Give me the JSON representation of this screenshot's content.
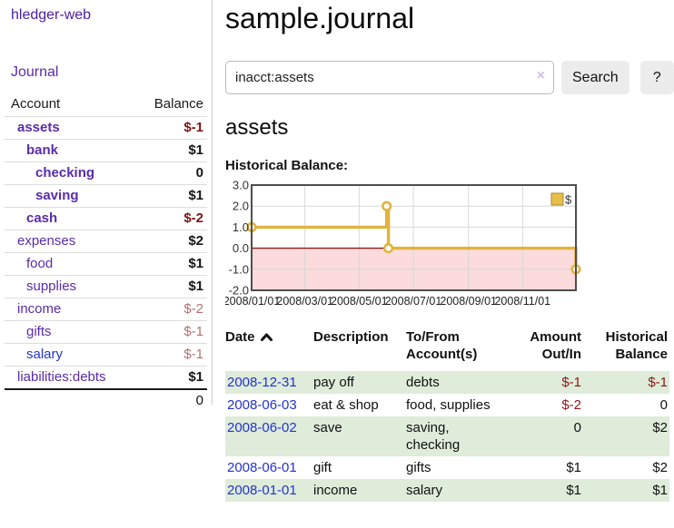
{
  "colors": {
    "link_purple": "#5a2ca8",
    "link_blue": "#2433cf",
    "negative_strong": "#7e1414",
    "negative_soft": "#b37070",
    "register_negative": "#8b1717",
    "row_shade_green": "#deecd9",
    "chart_line_gold": "#e2b33c",
    "chart_negative_fill": "#fbdbdb",
    "chart_zero_line": "#8f1a1a"
  },
  "app": {
    "title": "hledger-web",
    "nav_journal": "Journal"
  },
  "sidebar": {
    "headers": {
      "account": "Account",
      "balance": "Balance"
    },
    "accounts": [
      {
        "label": "assets",
        "balance": "$-1",
        "indent": 1,
        "bold": true,
        "link": "purple",
        "bal": "neg-strong"
      },
      {
        "label": "bank",
        "balance": "$1",
        "indent": 2,
        "bold": true,
        "link": "purple",
        "bal": "pos"
      },
      {
        "label": "checking",
        "balance": "0",
        "indent": 3,
        "bold": true,
        "link": "purple",
        "bal": "pos"
      },
      {
        "label": "saving",
        "balance": "$1",
        "indent": 3,
        "bold": true,
        "link": "purple",
        "bal": "pos"
      },
      {
        "label": "cash",
        "balance": "$-2",
        "indent": 2,
        "bold": true,
        "link": "purple",
        "bal": "neg-strong"
      },
      {
        "label": "expenses",
        "balance": "$2",
        "indent": 1,
        "bold": false,
        "link": "purple",
        "bal": "pos"
      },
      {
        "label": "food",
        "balance": "$1",
        "indent": 2,
        "bold": false,
        "link": "purple",
        "bal": "pos"
      },
      {
        "label": "supplies",
        "balance": "$1",
        "indent": 2,
        "bold": false,
        "link": "purple",
        "bal": "pos"
      },
      {
        "label": "income",
        "balance": "$-2",
        "indent": 1,
        "bold": false,
        "link": "purple",
        "bal": "neg-soft"
      },
      {
        "label": "gifts",
        "balance": "$-1",
        "indent": 2,
        "bold": false,
        "link": "purple",
        "bal": "neg-soft"
      },
      {
        "label": "salary",
        "balance": "$-1",
        "indent": 2,
        "bold": false,
        "link": "blue",
        "bal": "neg-soft"
      },
      {
        "label": "liabilities:debts",
        "balance": "$1",
        "indent": 1,
        "bold": false,
        "link": "purple",
        "bal": "pos"
      }
    ],
    "total": "0"
  },
  "main": {
    "title": "sample.journal",
    "account_heading": "assets",
    "chart_label": "Historical Balance:"
  },
  "search": {
    "value": "inacct:assets",
    "clear_icon": "×",
    "button_label": "Search",
    "help_label": "?"
  },
  "chart_data": {
    "type": "line",
    "title": "Historical Balance",
    "step": true,
    "series": [
      {
        "name": "$",
        "points": [
          [
            "2008-01-01",
            1
          ],
          [
            "2008-06-01",
            2
          ],
          [
            "2008-06-03",
            0
          ],
          [
            "2008-12-31",
            -1
          ]
        ]
      }
    ],
    "x_range": [
      "2008-01-01",
      "2008-12-31"
    ],
    "ylim": [
      -2,
      3
    ],
    "yticks": [
      3,
      2,
      1,
      0,
      -1,
      -2
    ],
    "xticks": [
      "2008/01/01",
      "2008/03/01",
      "2008/05/01",
      "2008/07/01",
      "2008/09/01",
      "2008/11/01"
    ],
    "legend": [
      {
        "label": "$",
        "color": "#e6c04a"
      }
    ],
    "legend_position": "top-right",
    "grid": true,
    "negative_region_fill": "#fbdbdb",
    "line_color": "#e2b33c",
    "zero_line_color": "#8f1a1a"
  },
  "register": {
    "headers": {
      "date": "Date",
      "sort_icon": "chevron-up",
      "description": "Description",
      "accounts": "To/From Account(s)",
      "amount": "Amount Out/In",
      "balance": "Historical Balance"
    },
    "rows": [
      {
        "date": "2008-12-31",
        "description": "pay off",
        "accounts": "debts",
        "amount": "$-1",
        "amount_negative": true,
        "balance": "$-1",
        "balance_negative": true,
        "shaded": true
      },
      {
        "date": "2008-06-03",
        "description": "eat & shop",
        "accounts": "food, supplies",
        "amount": "$-2",
        "amount_negative": true,
        "balance": "0",
        "balance_negative": false,
        "shaded": false
      },
      {
        "date": "2008-06-02",
        "description": "save",
        "accounts": "saving, checking",
        "amount": "0",
        "amount_negative": false,
        "balance": "$2",
        "balance_negative": false,
        "shaded": true
      },
      {
        "date": "2008-06-01",
        "description": "gift",
        "accounts": "gifts",
        "amount": "$1",
        "amount_negative": false,
        "balance": "$2",
        "balance_negative": false,
        "shaded": false
      },
      {
        "date": "2008-01-01",
        "description": "income",
        "accounts": "salary",
        "amount": "$1",
        "amount_negative": false,
        "balance": "$1",
        "balance_negative": false,
        "shaded": true
      }
    ]
  }
}
